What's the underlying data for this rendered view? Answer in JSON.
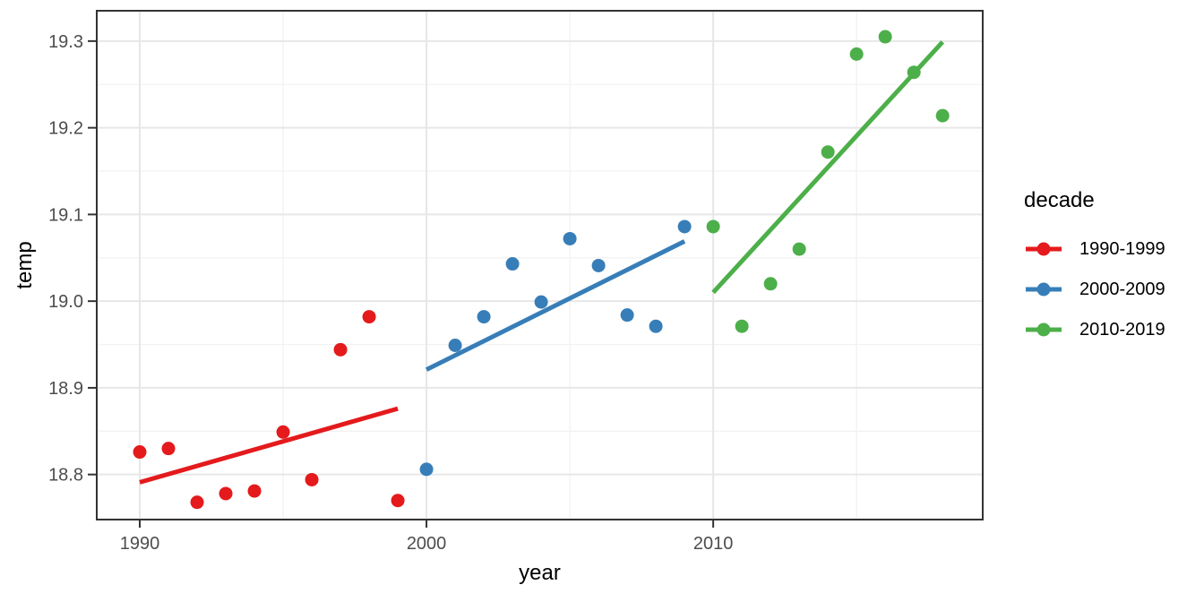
{
  "chart_data": {
    "type": "scatter",
    "title": "",
    "xlabel": "year",
    "ylabel": "temp",
    "legend_title": "decade",
    "legend_position": "right",
    "grid": "major+minor",
    "xlim": [
      1988.5,
      2019.4
    ],
    "ylim": [
      18.748,
      19.335
    ],
    "x_ticks": [
      1990,
      2000,
      2010
    ],
    "x_minor_ticks": [
      1995,
      2005,
      2015
    ],
    "y_ticks": [
      18.8,
      18.9,
      19.0,
      19.1,
      19.2,
      19.3
    ],
    "y_minor_ticks": [
      18.75,
      18.85,
      18.95,
      19.05,
      19.15,
      19.25
    ],
    "series": [
      {
        "name": "1990-1999",
        "color": "#E41A1C",
        "points": [
          [
            1990,
            18.826
          ],
          [
            1991,
            18.83
          ],
          [
            1992,
            18.768
          ],
          [
            1993,
            18.778
          ],
          [
            1994,
            18.781
          ],
          [
            1995,
            18.849
          ],
          [
            1996,
            18.794
          ],
          [
            1997,
            18.944
          ],
          [
            1998,
            18.982
          ],
          [
            1999,
            18.77
          ]
        ],
        "trend_line": [
          [
            1990,
            18.791
          ],
          [
            1999,
            18.876
          ]
        ]
      },
      {
        "name": "2000-2009",
        "color": "#377EB8",
        "points": [
          [
            2000,
            18.806
          ],
          [
            2001,
            18.949
          ],
          [
            2002,
            18.982
          ],
          [
            2003,
            19.043
          ],
          [
            2004,
            18.999
          ],
          [
            2005,
            19.072
          ],
          [
            2006,
            19.041
          ],
          [
            2007,
            18.984
          ],
          [
            2008,
            18.971
          ],
          [
            2009,
            19.086
          ]
        ],
        "trend_line": [
          [
            2000,
            18.921
          ],
          [
            2009,
            19.069
          ]
        ]
      },
      {
        "name": "2010-2019",
        "color": "#4DAF4A",
        "points": [
          [
            2010,
            19.086
          ],
          [
            2011,
            18.971
          ],
          [
            2012,
            19.02
          ],
          [
            2013,
            19.06
          ],
          [
            2014,
            19.172
          ],
          [
            2015,
            19.285
          ],
          [
            2016,
            19.305
          ],
          [
            2017,
            19.264
          ],
          [
            2018,
            19.214
          ]
        ],
        "trend_line": [
          [
            2010,
            19.01
          ],
          [
            2018,
            19.299
          ]
        ]
      }
    ],
    "style": {
      "background": "#FFFFFF",
      "panel_border": "#333333",
      "tick_color": "#333333",
      "tick_label_color": "#4D4D4D",
      "grid_major": "#E7E7E7",
      "grid_minor": "#F2F2F2",
      "point_radius": 7.5,
      "line_width": 5
    }
  }
}
